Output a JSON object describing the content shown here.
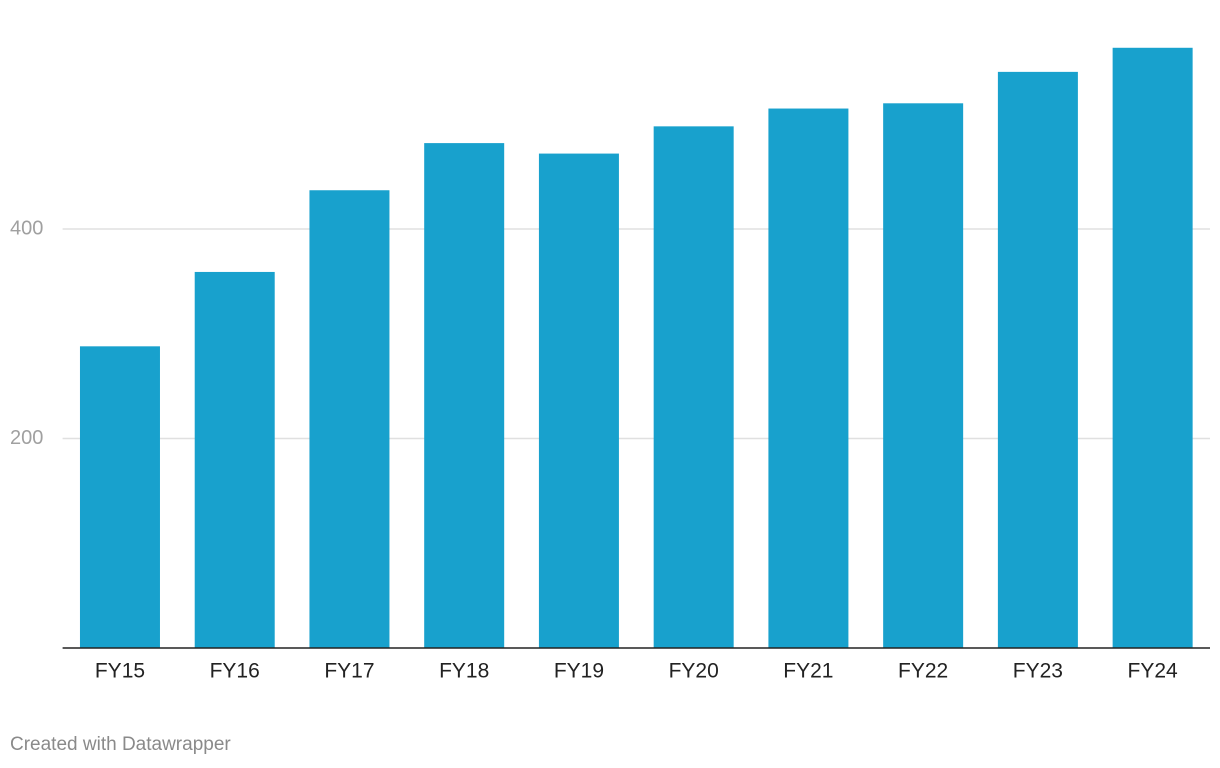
{
  "chart_data": {
    "type": "bar",
    "categories": [
      "FY15",
      "FY16",
      "FY17",
      "FY18",
      "FY19",
      "FY20",
      "FY21",
      "FY22",
      "FY23",
      "FY24"
    ],
    "values": [
      288,
      359,
      437,
      482,
      472,
      498,
      515,
      520,
      550,
      573
    ],
    "color": "#18a1cd",
    "ylim": [
      0,
      600
    ],
    "yticks": [
      200,
      400
    ],
    "grid": true,
    "footer": "Created with Datawrapper"
  }
}
